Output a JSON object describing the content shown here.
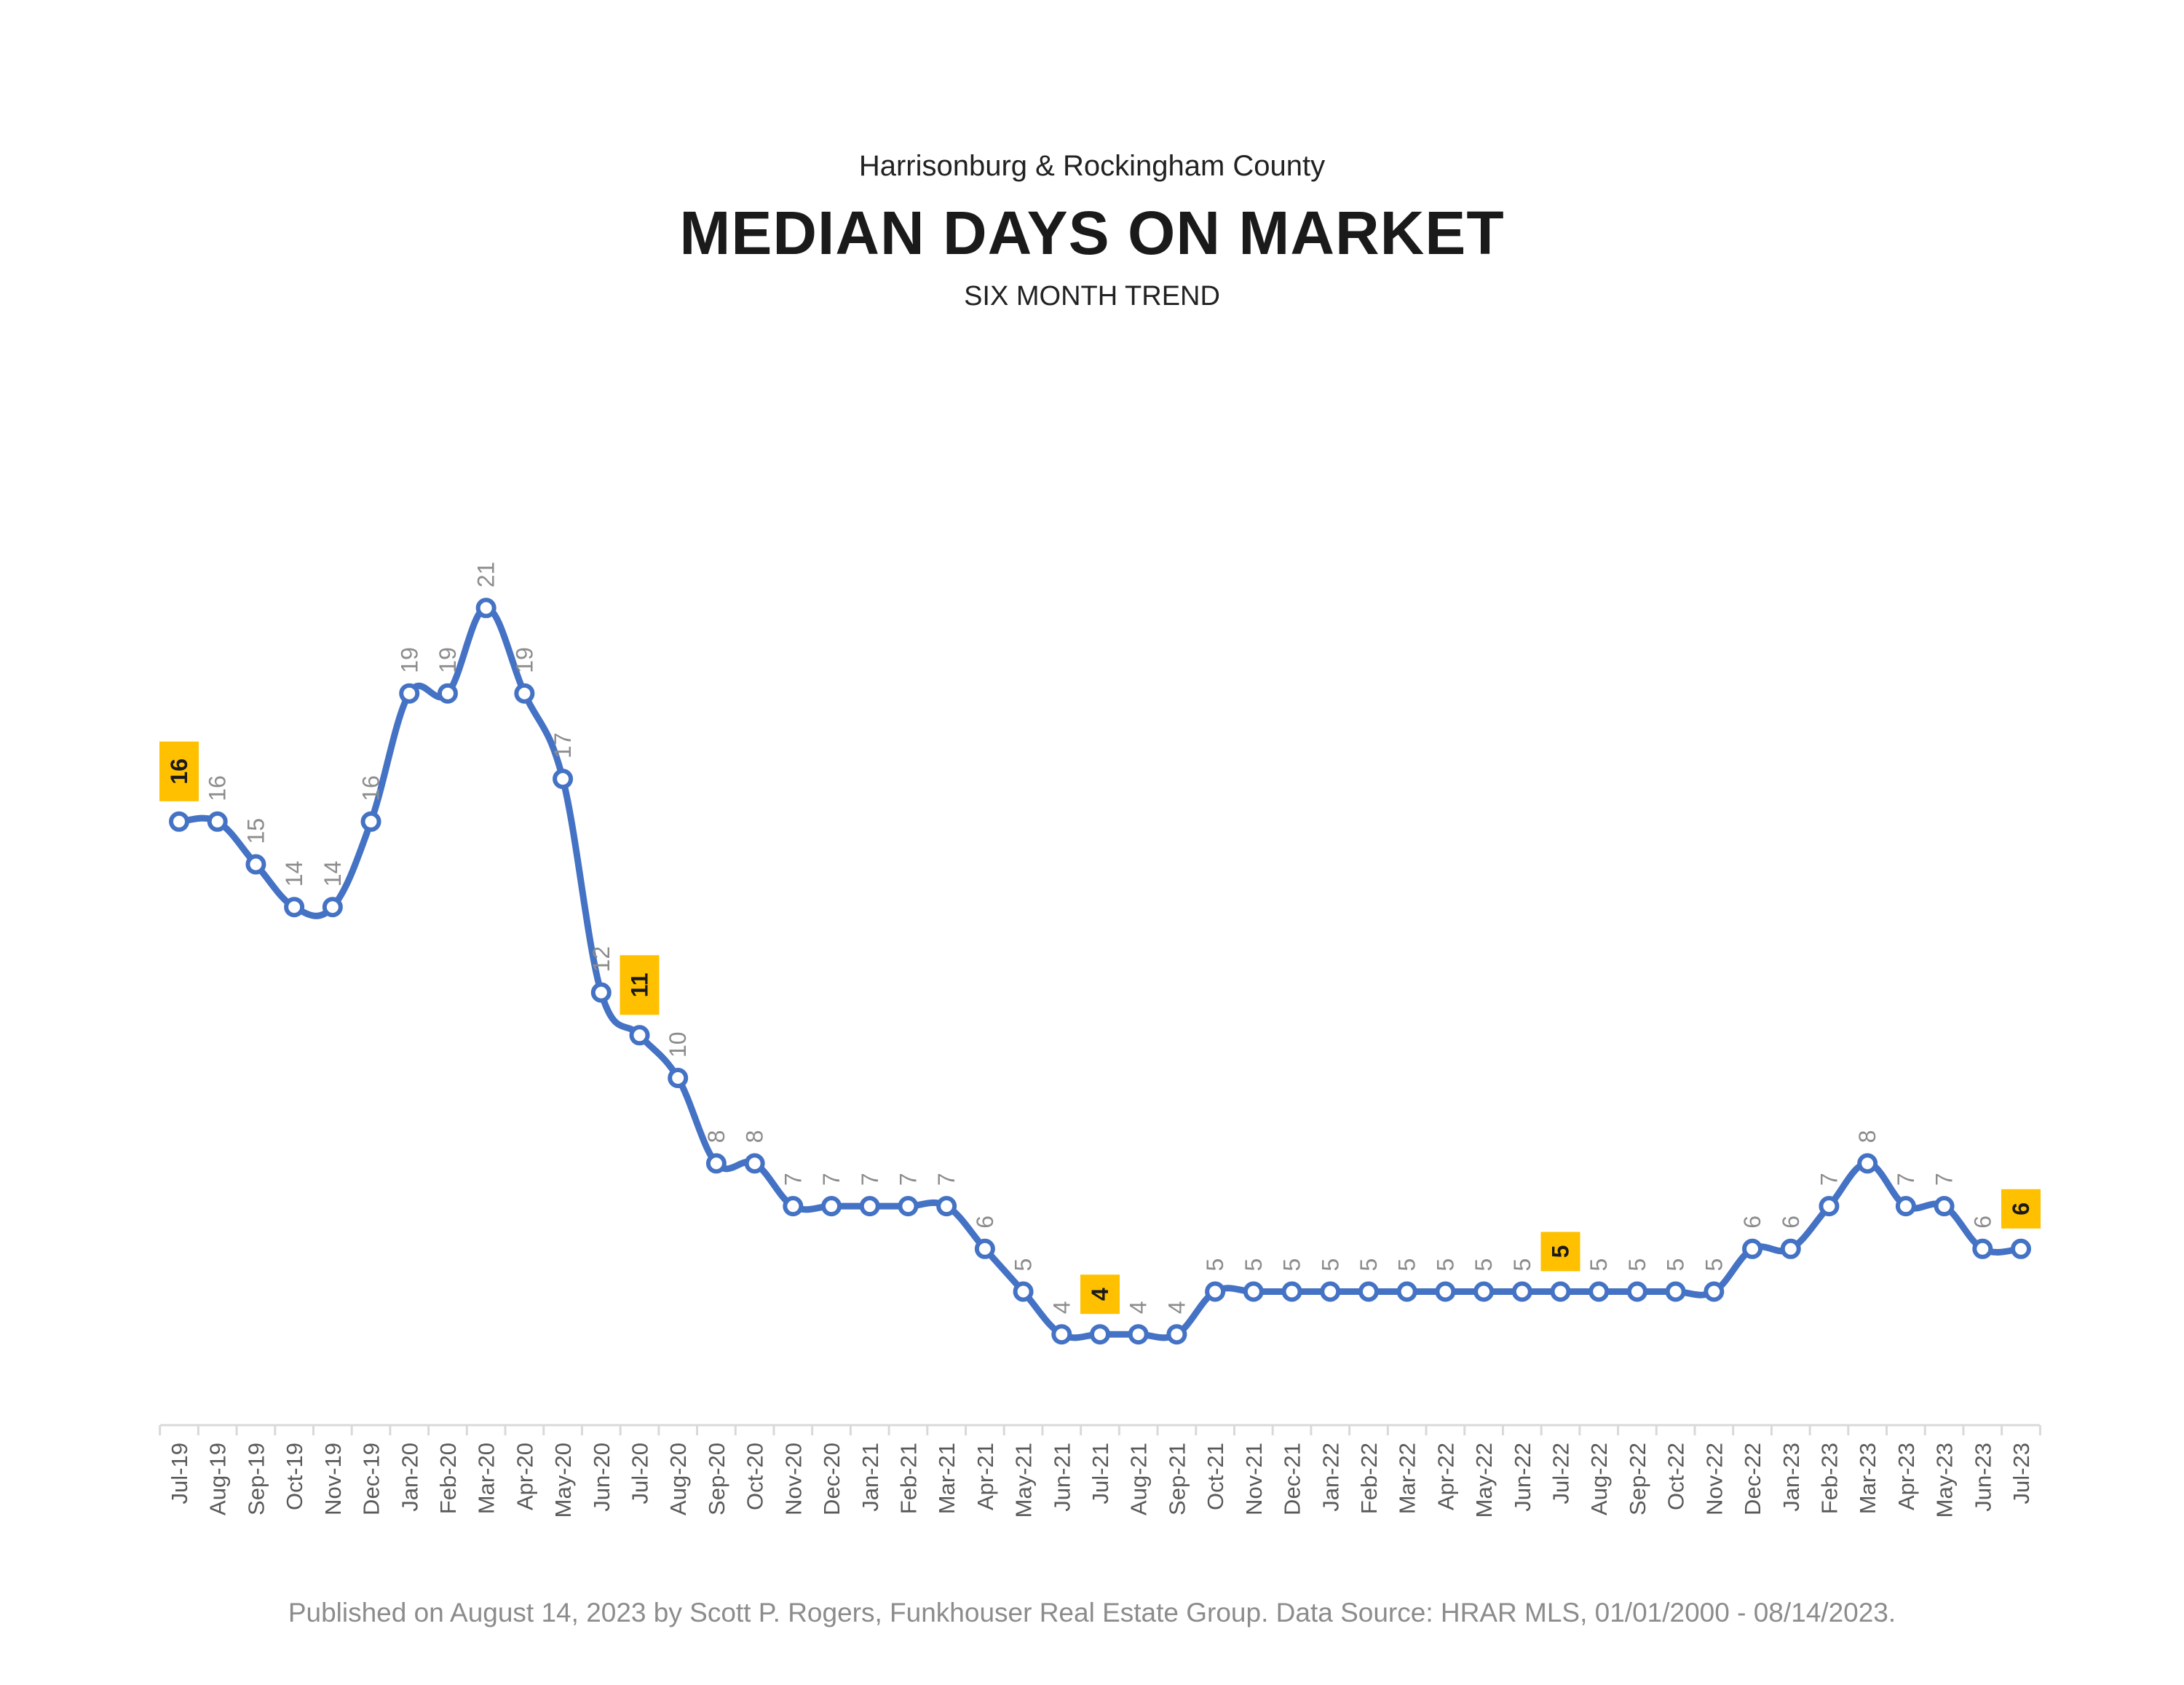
{
  "header": {
    "supertitle": "Harrisonburg & Rockingham County",
    "title": "MEDIAN DAYS ON MARKET",
    "subtitle": "SIX MONTH TREND"
  },
  "footer": {
    "text": "Published on August 14, 2023 by Scott P. Rogers, Funkhouser Real Estate Group. Data Source: HRAR MLS, 01/01/2000 - 08/14/2023."
  },
  "colors": {
    "line": "#4472c4",
    "highlight": "#ffc000",
    "label": "#8c8c8c",
    "axis": "#d9d9d9"
  },
  "chart_data": {
    "type": "line",
    "title": "MEDIAN DAYS ON MARKET",
    "subtitle": "SIX MONTH TREND",
    "xlabel": "",
    "ylabel": "",
    "ylim": [
      0,
      21
    ],
    "grid": false,
    "legend": "none",
    "categories": [
      "Jul-19",
      "Aug-19",
      "Sep-19",
      "Oct-19",
      "Nov-19",
      "Dec-19",
      "Jan-20",
      "Feb-20",
      "Mar-20",
      "Apr-20",
      "May-20",
      "Jun-20",
      "Jul-20",
      "Aug-20",
      "Sep-20",
      "Oct-20",
      "Nov-20",
      "Dec-20",
      "Jan-21",
      "Feb-21",
      "Mar-21",
      "Apr-21",
      "May-21",
      "Jun-21",
      "Jul-21",
      "Aug-21",
      "Sep-21",
      "Oct-21",
      "Nov-21",
      "Dec-21",
      "Jan-22",
      "Feb-22",
      "Mar-22",
      "Apr-22",
      "May-22",
      "Jun-22",
      "Jul-22",
      "Aug-22",
      "Sep-22",
      "Oct-22",
      "Nov-22",
      "Dec-22",
      "Jan-23",
      "Feb-23",
      "Mar-23",
      "Apr-23",
      "May-23",
      "Jun-23",
      "Jul-23"
    ],
    "series": [
      {
        "values": [
          16,
          16,
          15,
          14,
          14,
          16,
          19,
          19,
          21,
          19,
          17,
          12,
          11,
          10,
          8,
          8,
          7,
          7,
          7,
          7,
          7,
          6,
          5,
          4,
          4,
          4,
          4,
          5,
          5,
          5,
          5,
          5,
          5,
          5,
          5,
          5,
          5,
          5,
          5,
          5,
          5,
          6,
          6,
          7,
          8,
          7,
          7,
          6,
          6
        ]
      }
    ],
    "highlighted_categories": [
      "Jul-19",
      "Jul-20",
      "Jul-21",
      "Jul-22",
      "Jul-23"
    ]
  }
}
